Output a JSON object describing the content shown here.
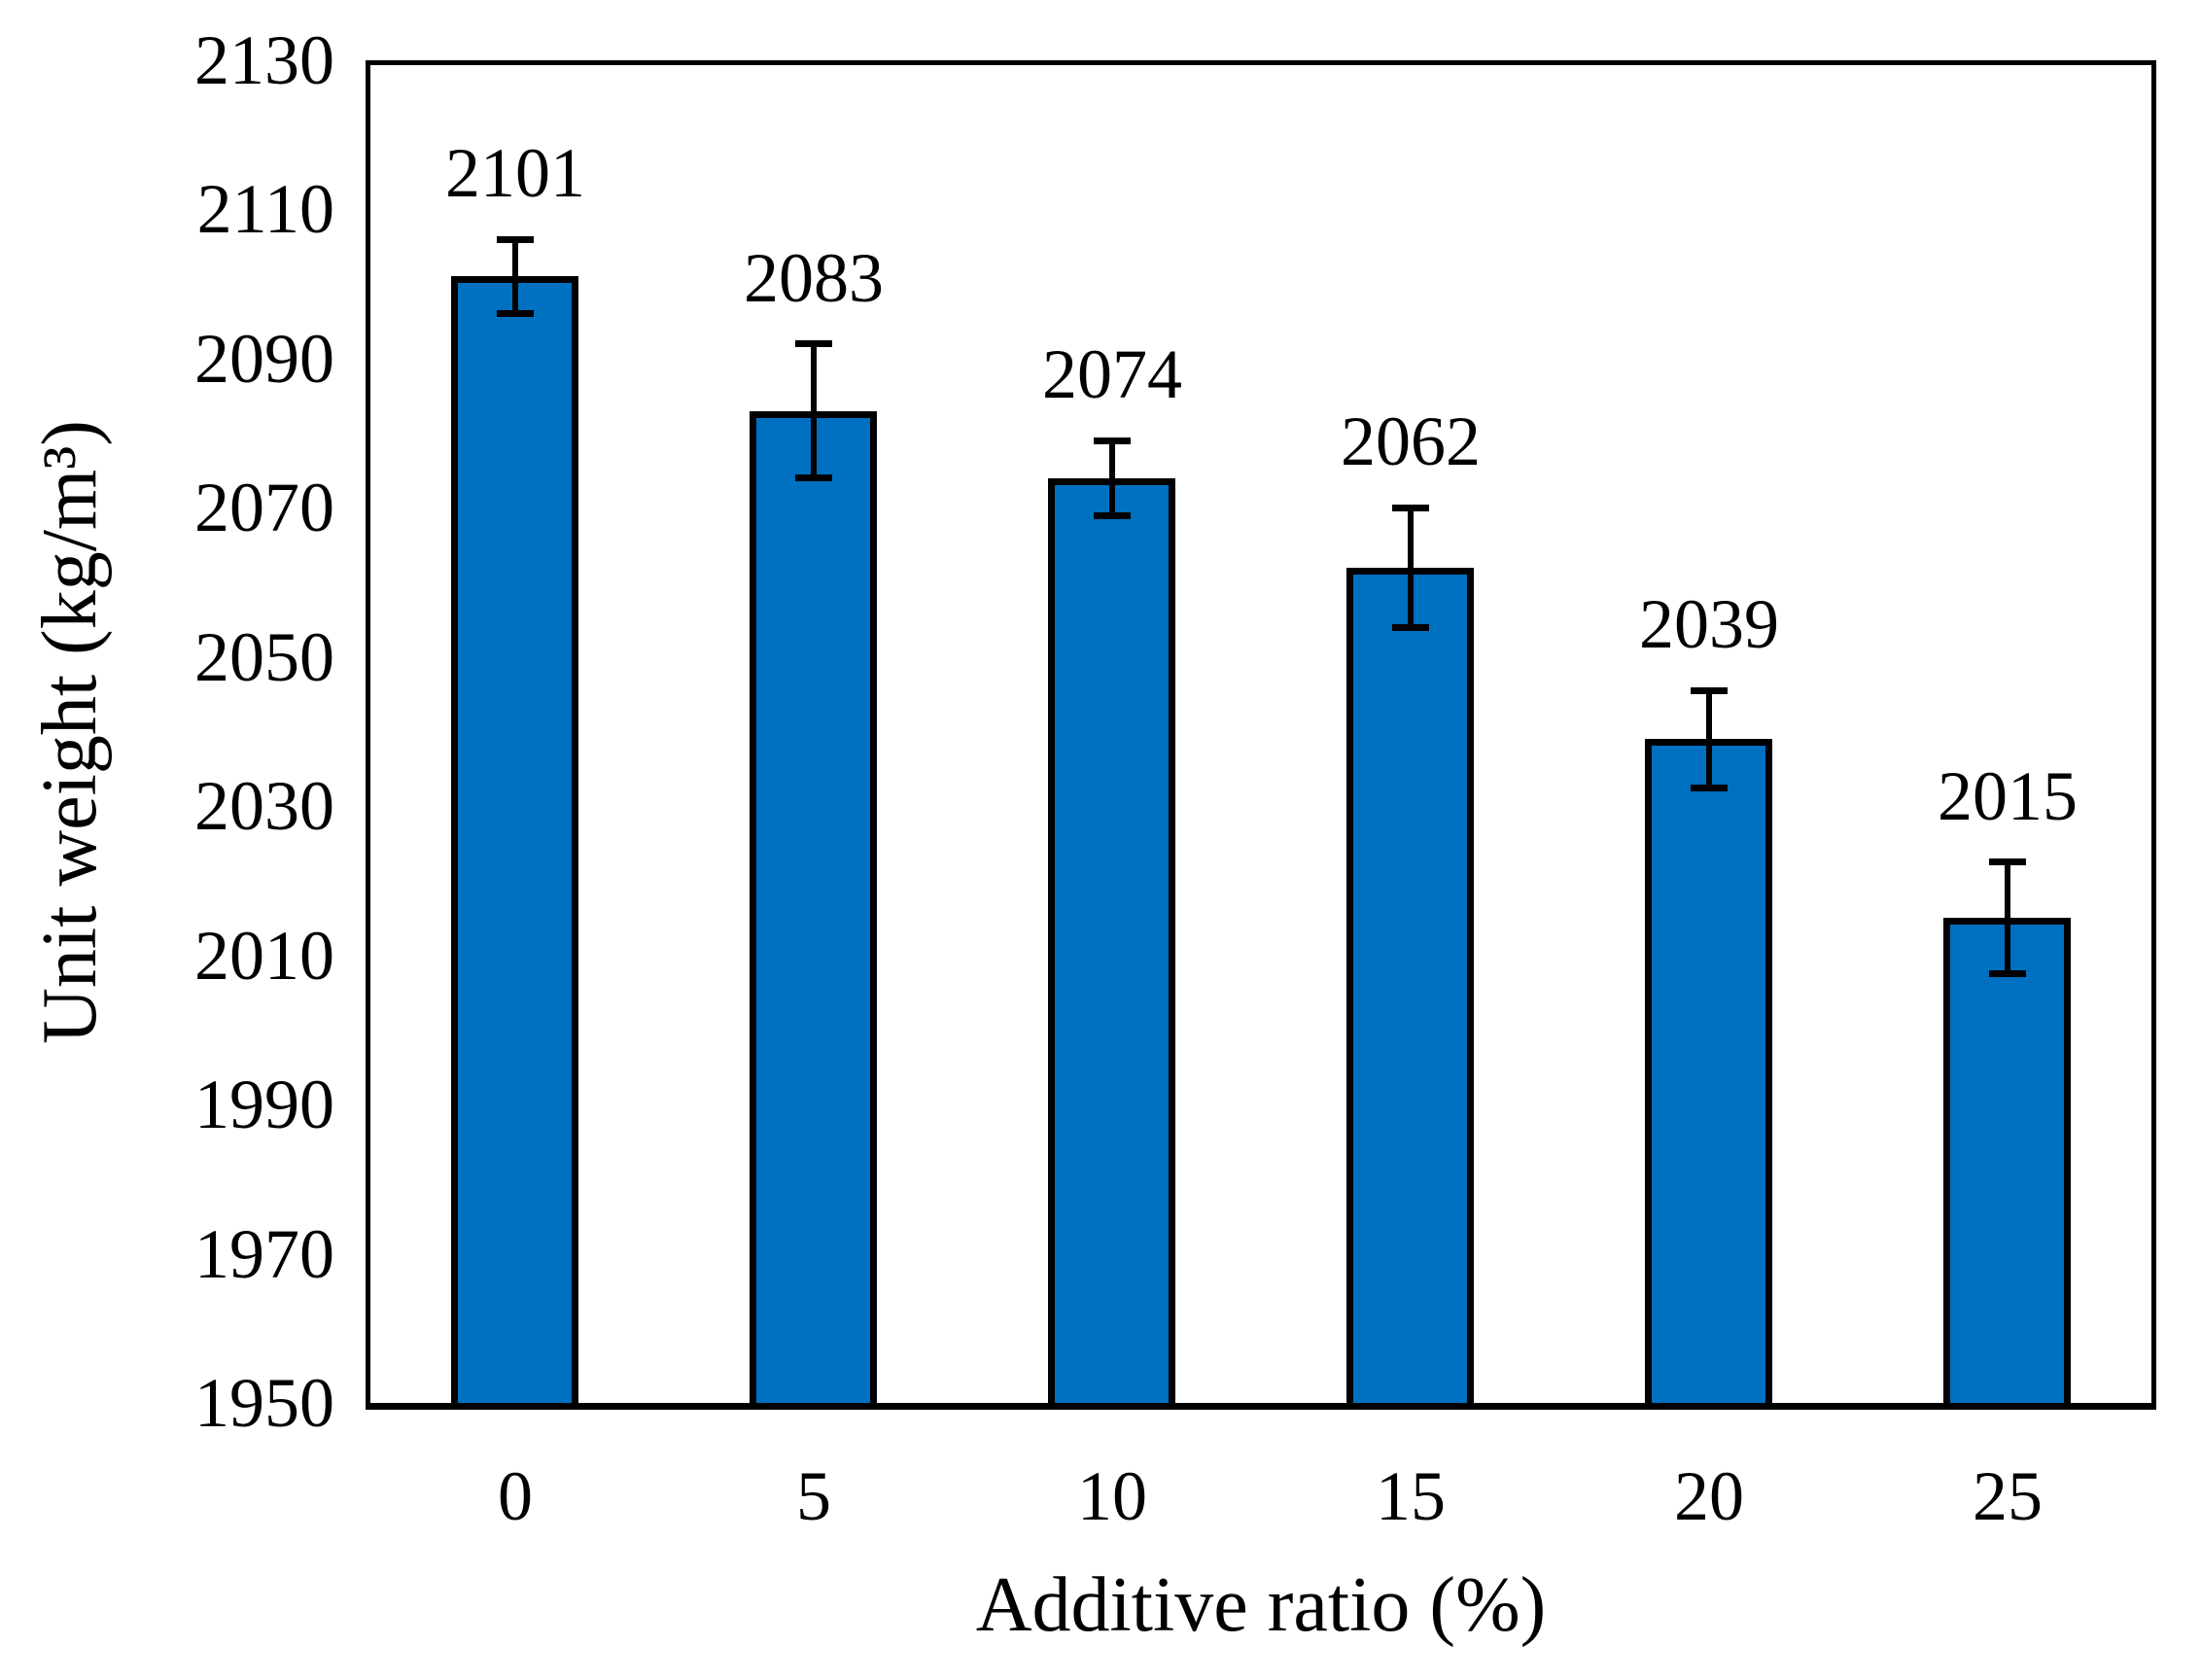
{
  "chart_data": {
    "type": "bar",
    "title": "",
    "categories": [
      "0",
      "5",
      "10",
      "15",
      "20",
      "25"
    ],
    "values": [
      2101,
      2083,
      2074,
      2062,
      2039,
      2015
    ],
    "errors": [
      5,
      9,
      5,
      8,
      6.5,
      7.5
    ],
    "data_labels": [
      "2101",
      "2083",
      "2074",
      "2062",
      "2039",
      "2015"
    ],
    "xlabel": "Additive ratio (%)",
    "ylabel": "Unit weight (kg/m³)",
    "ylim": [
      1950,
      2130
    ],
    "ytick_step": 20,
    "yticks": [
      1950,
      1970,
      1990,
      2010,
      2030,
      2050,
      2070,
      2090,
      2110,
      2130
    ],
    "grid": false,
    "legend_position": "none",
    "bar_color": "#0070C0",
    "bar_border_color": "#000000",
    "error_bar_color": "#000000",
    "background_color": "#FFFFFF"
  }
}
